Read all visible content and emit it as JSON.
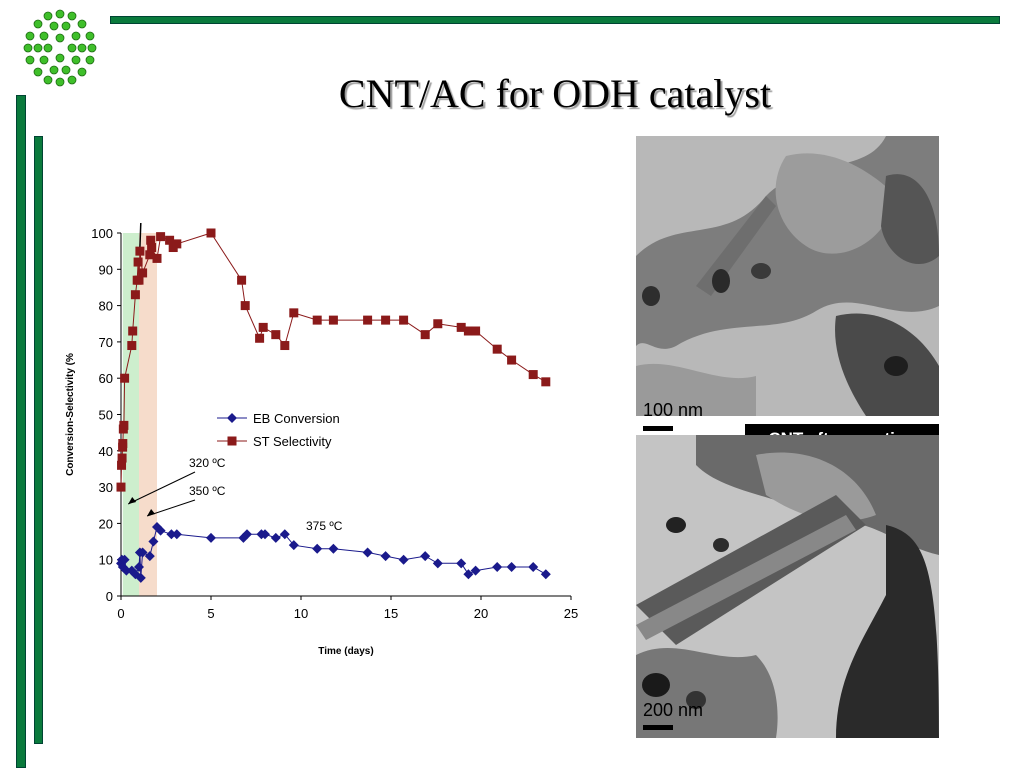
{
  "slide": {
    "title": "CNT/AC for ODH catalyst",
    "accent_color": "#0a7a3c",
    "logo": "fullerene-molecule-icon"
  },
  "images": {
    "top": {
      "scale_label": "100 nm"
    },
    "bottom": {
      "scale_label": "200 nm",
      "caption": "CNT after reaction"
    }
  },
  "chart_data": {
    "type": "line",
    "xlabel": "Time (days)",
    "ylabel": "Conversion-Selectivity (%",
    "xlim": [
      0,
      25
    ],
    "ylim": [
      0,
      100
    ],
    "xticks": [
      0,
      5,
      10,
      15,
      20,
      25
    ],
    "yticks": [
      0,
      10,
      20,
      30,
      40,
      50,
      60,
      70,
      80,
      90,
      100
    ],
    "grid": false,
    "legend": "center",
    "series": [
      {
        "name": "EB Conversion",
        "color": "#1a1a8c",
        "marker": "diamond",
        "x": [
          0,
          0.05,
          0.1,
          0.2,
          0.3,
          0.6,
          0.8,
          1.0,
          1.05,
          1.1,
          1.2,
          1.6,
          1.8,
          2.0,
          2.2,
          2.8,
          3.1,
          5.0,
          6.8,
          7.0,
          7.8,
          8.0,
          8.6,
          9.1,
          9.6,
          10.9,
          11.8,
          13.7,
          14.7,
          15.7,
          16.9,
          17.6,
          18.9,
          19.3,
          19.7,
          20.9,
          21.7,
          22.9,
          23.6
        ],
        "y": [
          9,
          10,
          8,
          10,
          7,
          7,
          6,
          8,
          12,
          5,
          12,
          11,
          15,
          19,
          18,
          17,
          17,
          16,
          16,
          17,
          17,
          17,
          16,
          17,
          14,
          13,
          13,
          12,
          11,
          10,
          11,
          9,
          9,
          6,
          7,
          8,
          8,
          8,
          6
        ]
      },
      {
        "name": "ST Selectivity",
        "color": "#8b1a1a",
        "marker": "square",
        "x": [
          0,
          0.03,
          0.06,
          0.09,
          0.1,
          0.13,
          0.16,
          0.2,
          0.6,
          0.65,
          0.8,
          0.9,
          0.95,
          1.0,
          1.05,
          1.2,
          1.6,
          1.65,
          1.7,
          2.0,
          2.2,
          2.7,
          2.9,
          3.1,
          5.0,
          6.7,
          6.9,
          7.7,
          7.9,
          8.6,
          9.1,
          9.6,
          10.9,
          11.8,
          13.7,
          14.7,
          15.7,
          16.9,
          17.6,
          18.9,
          19.3,
          19.7,
          20.9,
          21.7,
          22.9,
          23.6
        ],
        "y": [
          30,
          36,
          38,
          41,
          42,
          46,
          47,
          60,
          69,
          73,
          83,
          87,
          92,
          87,
          95,
          89,
          94,
          98,
          96,
          93,
          99,
          98,
          96,
          97,
          100,
          87,
          80,
          71,
          74,
          72,
          69,
          78,
          76,
          76,
          76,
          76,
          76,
          72,
          75,
          74,
          73,
          73,
          68,
          65,
          61,
          59
        ]
      }
    ],
    "bands": [
      {
        "from": 0.1,
        "to": 1.0,
        "color": "#cdeecd"
      },
      {
        "from": 1.0,
        "to": 2.0,
        "color": "#f6dccb"
      }
    ],
    "annotations": [
      "320 ºC",
      "350 ºC",
      "375 ºC"
    ]
  }
}
